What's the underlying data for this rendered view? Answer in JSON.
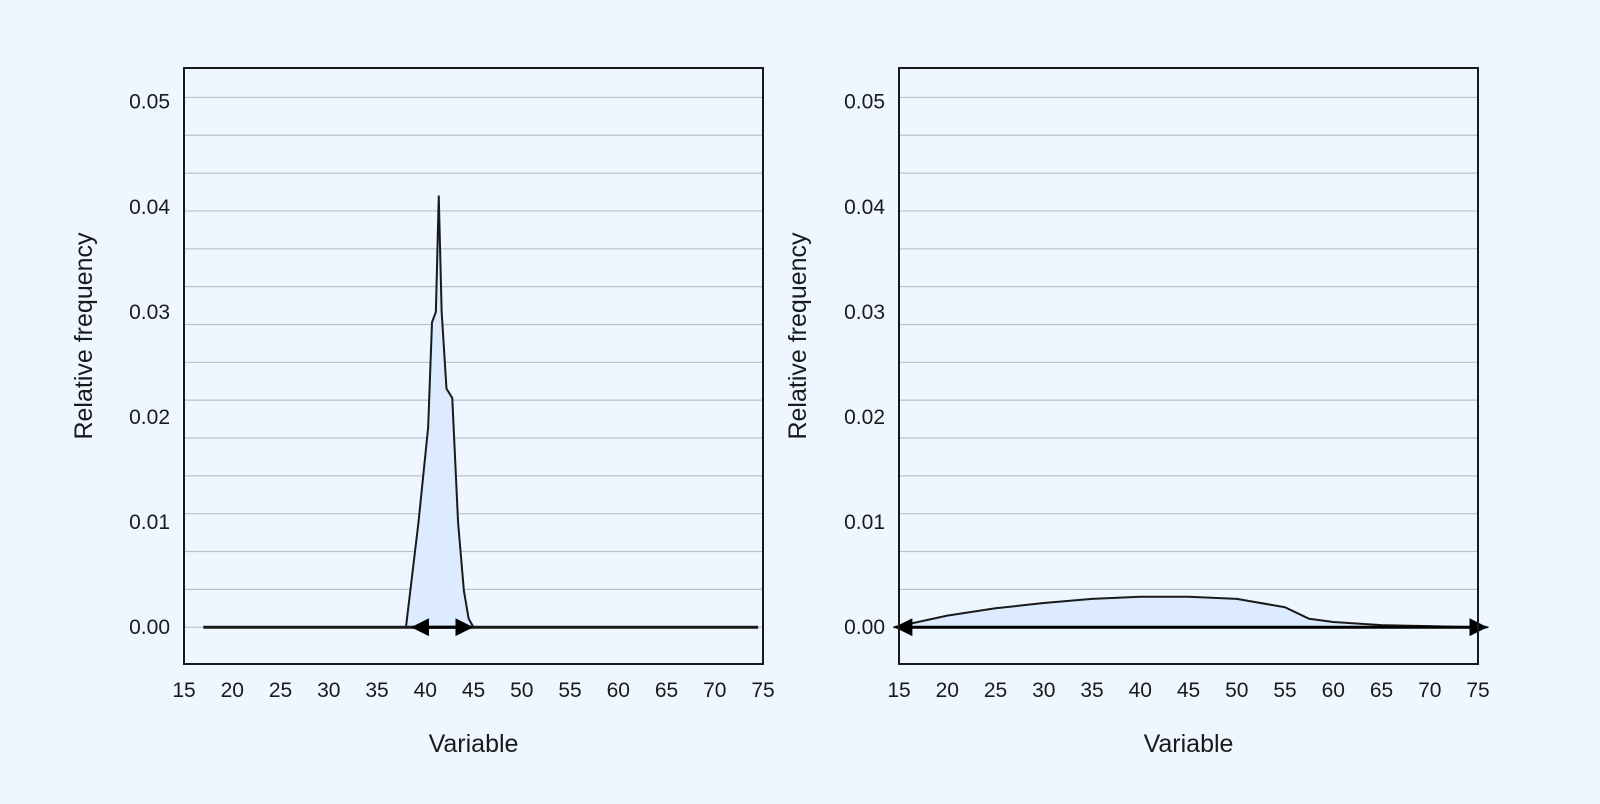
{
  "chart_data": [
    {
      "type": "area",
      "xlabel": "Variable",
      "ylabel": "Relative frequency",
      "x_ticks": [
        15,
        20,
        25,
        30,
        35,
        40,
        45,
        50,
        55,
        60,
        65,
        70,
        75
      ],
      "y_ticks": [
        "0.00",
        "0.01",
        "0.02",
        "0.03",
        "0.04",
        "0.05"
      ],
      "xlim": [
        15,
        75
      ],
      "ylim": [
        -0.0035,
        0.0532
      ],
      "grid": "horizontal",
      "minor_grid_step": 0.0036,
      "fill_color": "#DCEBFF",
      "line_color": "#1a1a1a",
      "baseline": [
        17,
        74.5
      ],
      "range_arrow": [
        38.5,
        45
      ],
      "x": [
        38,
        39.3,
        40.3,
        40.7,
        41.1,
        41.4,
        41.7,
        42.2,
        42.8,
        43.4,
        44,
        44.5,
        45
      ],
      "y": [
        0,
        0.01,
        0.019,
        0.029,
        0.03,
        0.041,
        0.03,
        0.0227,
        0.0218,
        0.01,
        0.0035,
        0.0008,
        0
      ]
    },
    {
      "type": "area",
      "xlabel": "Variable",
      "ylabel": "Relative frequency",
      "x_ticks": [
        15,
        20,
        25,
        30,
        35,
        40,
        45,
        50,
        55,
        60,
        65,
        70,
        75
      ],
      "y_ticks": [
        "0.00",
        "0.01",
        "0.02",
        "0.03",
        "0.04",
        "0.05"
      ],
      "xlim": [
        15,
        75
      ],
      "ylim": [
        -0.0035,
        0.0532
      ],
      "grid": "horizontal",
      "minor_grid_step": 0.0036,
      "fill_color": "#DCEBFF",
      "line_color": "#1a1a1a",
      "baseline": [
        15,
        75
      ],
      "range_arrow": [
        14.5,
        76
      ],
      "x": [
        14.5,
        17.5,
        20,
        25,
        30,
        35,
        40,
        43,
        45,
        50,
        55,
        57.5,
        60,
        65,
        70,
        74.5,
        76
      ],
      "y": [
        0,
        0.0006,
        0.0011,
        0.0018,
        0.0023,
        0.0027,
        0.0029,
        0.0029,
        0.0029,
        0.0027,
        0.0019,
        0.0008,
        0.0005,
        0.0002,
        0.0001,
        0,
        0
      ]
    }
  ]
}
